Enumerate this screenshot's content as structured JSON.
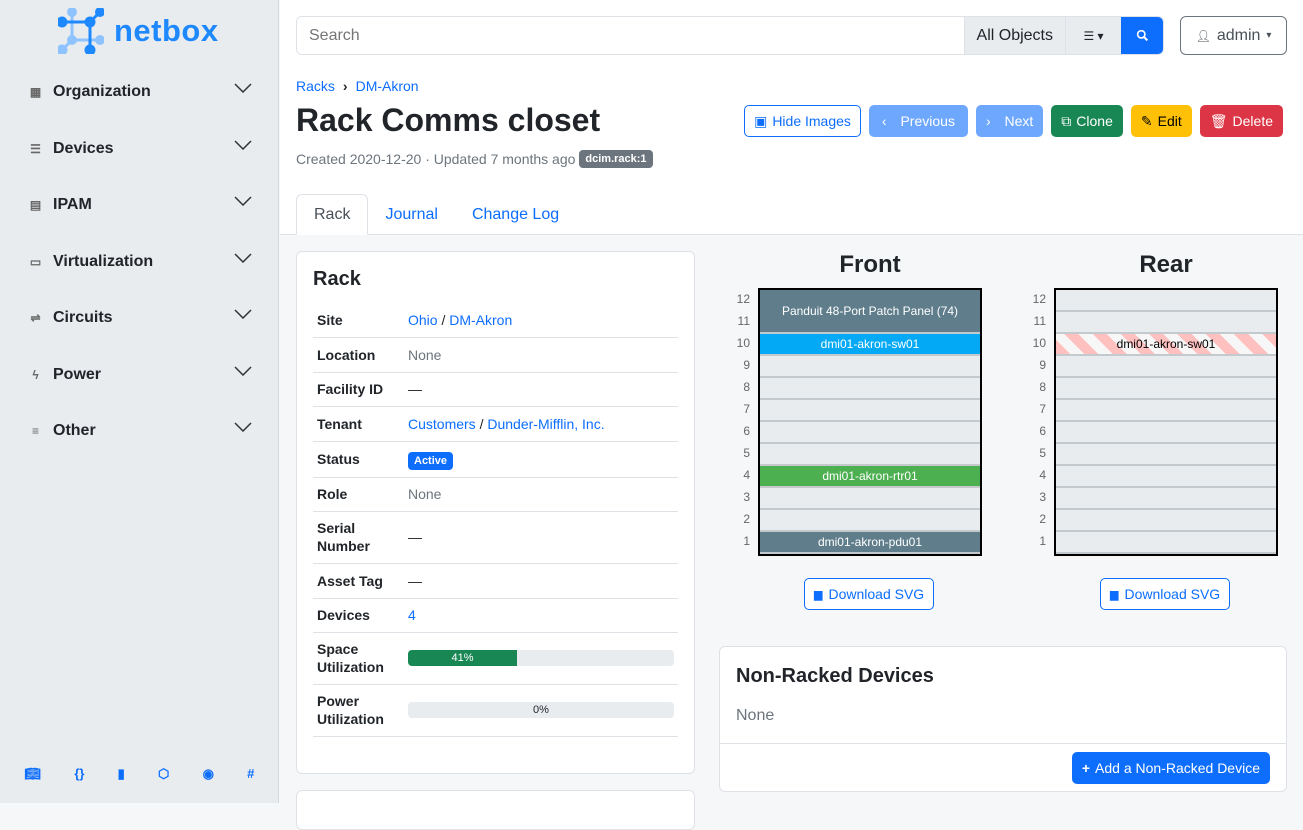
{
  "brand": "netbox",
  "sidebar": {
    "items": [
      {
        "label": "Organization",
        "icon": "building-icon"
      },
      {
        "label": "Devices",
        "icon": "server-icon"
      },
      {
        "label": "IPAM",
        "icon": "ip-icon"
      },
      {
        "label": "Virtualization",
        "icon": "monitor-icon"
      },
      {
        "label": "Circuits",
        "icon": "circuit-icon"
      },
      {
        "label": "Power",
        "icon": "lightning-icon"
      },
      {
        "label": "Other",
        "icon": "lines-icon"
      }
    ],
    "footer_icons": [
      "book-icon",
      "api-braces-icon",
      "bookmark-icon",
      "graphql-icon",
      "github-icon",
      "slack-icon"
    ]
  },
  "search": {
    "placeholder": "Search",
    "scope": "All Objects"
  },
  "user": {
    "name": "admin"
  },
  "breadcrumb": [
    "Racks",
    "DM-Akron"
  ],
  "page": {
    "title": "Rack Comms closet",
    "created": "Created 2020-12-20 · Updated 7 months ago",
    "tag": "dcim.rack:1"
  },
  "buttons": {
    "hide_images": "Hide Images",
    "previous": "Previous",
    "next": "Next",
    "clone": "Clone",
    "edit": "Edit",
    "delete": "Delete"
  },
  "tabs": [
    "Rack",
    "Journal",
    "Change Log"
  ],
  "rack_card": {
    "title": "Rack",
    "site": [
      "Ohio",
      "DM-Akron"
    ],
    "location": "None",
    "facility": "—",
    "tenant": [
      "Customers",
      "Dunder-Mifflin, Inc."
    ],
    "status": "Active",
    "role": "None",
    "serial": "—",
    "asset": "—",
    "devices": "4",
    "space_util": 41,
    "space_util_label": "41%",
    "power_util": 0,
    "power_util_label": "0%",
    "labels": {
      "site": "Site",
      "location": "Location",
      "facility": "Facility ID",
      "tenant": "Tenant",
      "status": "Status",
      "role": "Role",
      "serial": "Serial Number",
      "asset": "Asset Tag",
      "devices": "Devices",
      "space": "Space Utilization",
      "power": "Power Utilization"
    }
  },
  "elevation": {
    "front_title": "Front",
    "rear_title": "Rear",
    "units": [
      "12",
      "11",
      "10",
      "9",
      "8",
      "7",
      "6",
      "5",
      "4",
      "3",
      "2",
      "1"
    ],
    "front_devices": [
      {
        "name": "Panduit 48-Port Patch Panel (74)",
        "top": 12,
        "height": 2,
        "color": "#607d8b"
      },
      {
        "name": "dmi01-akron-sw01",
        "top": 10,
        "height": 1,
        "color": "#03a9f4"
      },
      {
        "name": "dmi01-akron-rtr01",
        "top": 4,
        "height": 1,
        "color": "#4caf50"
      },
      {
        "name": "dmi01-akron-pdu01",
        "top": 1,
        "height": 1,
        "color": "#607d8b"
      }
    ],
    "rear_devices": [
      {
        "name": "dmi01-akron-sw01",
        "top": 10,
        "height": 1,
        "color": "#ffc0c0"
      }
    ],
    "download": "Download SVG"
  },
  "non_racked": {
    "title": "Non-Racked Devices",
    "value": "None",
    "add": "Add a Non-Racked Device"
  }
}
